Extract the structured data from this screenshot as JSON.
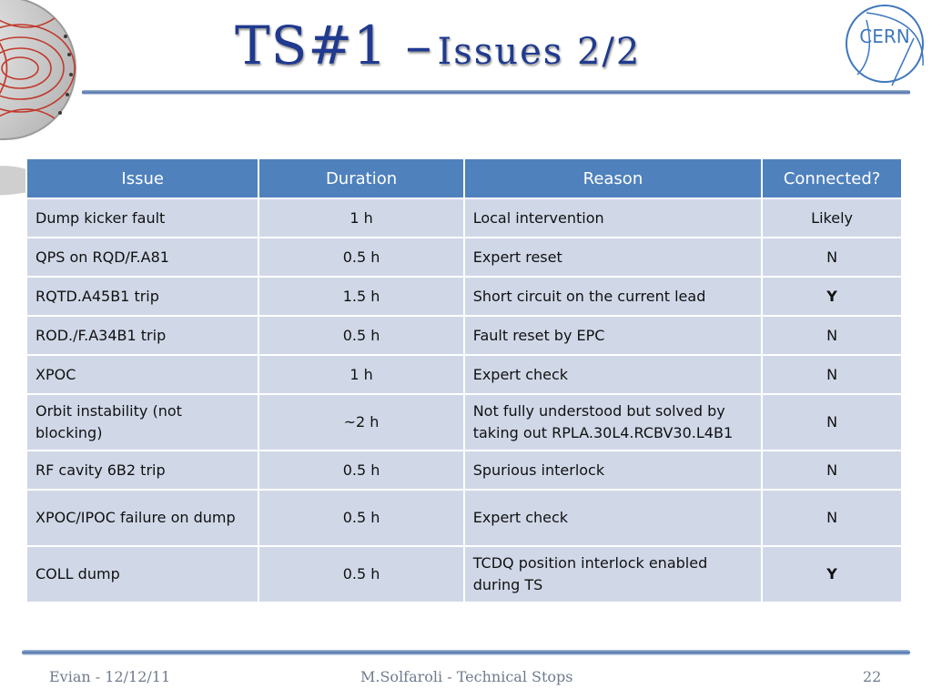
{
  "slide": {
    "title_main": "TS#1 –",
    "title_sub": "Issues 2/2",
    "logo_text": "CERN"
  },
  "table": {
    "headers": [
      "Issue",
      "Duration",
      "Reason",
      "Connected?"
    ],
    "rows": [
      [
        "Dump kicker fault",
        "1 h",
        "Local intervention",
        "Likely"
      ],
      [
        "QPS on RQD/F.A81",
        "0.5 h",
        "Expert reset",
        "N"
      ],
      [
        "RQTD.A45B1 trip",
        "1.5 h",
        "Short circuit on the current lead",
        "Y"
      ],
      [
        "ROD./F.A34B1 trip",
        "0.5 h",
        "Fault reset by EPC",
        "N"
      ],
      [
        "XPOC",
        "1 h",
        "Expert check",
        "N"
      ],
      [
        "Orbit instability (not blocking)",
        "~2 h",
        "Not fully understood but solved by taking out RPLA.30L4.RCBV30.L4B1",
        "N"
      ],
      [
        "RF cavity 6B2 trip",
        "0.5 h",
        "Spurious interlock",
        "N"
      ],
      [
        "XPOC/IPOC failure on dump",
        "0.5 h",
        "Expert check",
        "N"
      ],
      [
        "COLL dump",
        "0.5 h",
        "TCDQ position interlock enabled during TS",
        "Y"
      ]
    ]
  },
  "footer": {
    "left": "Evian - 12/12/11",
    "center": "M.Solfaroli - Technical Stops",
    "page_number": "22"
  },
  "colors": {
    "header_bg": "#4f81bd",
    "row_bg": "#d0d8e8",
    "title": "#1f3a8f",
    "footer_text": "#6f7b8c"
  }
}
